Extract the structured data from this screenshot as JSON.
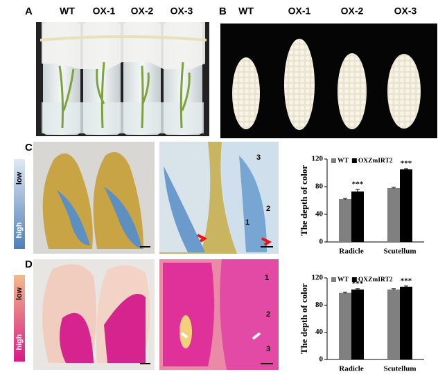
{
  "panels": {
    "a": {
      "label": "A",
      "tubes": [
        "WT",
        "OX-1",
        "OX-2",
        "OX-3"
      ]
    },
    "b": {
      "label": "B",
      "ears": [
        "WT",
        "OX-1",
        "OX-2",
        "OX-3"
      ]
    },
    "c": {
      "label": "C",
      "scale_low": "low",
      "scale_high": "high",
      "numbers": [
        "3",
        "2",
        "1"
      ]
    },
    "d": {
      "label": "D",
      "scale_low": "low",
      "scale_high": "high",
      "numbers": [
        "1",
        "2",
        "3"
      ]
    }
  },
  "chart_data": [
    {
      "type": "bar",
      "ylabel": "The depth of color",
      "categories": [
        "Radicle",
        "Scutellum"
      ],
      "series": [
        {
          "name": "WT",
          "color": "#808080",
          "values": [
            62,
            78
          ],
          "errors": [
            1,
            1
          ]
        },
        {
          "name": "OXZmIRT2",
          "color": "#000000",
          "values": [
            73,
            105
          ],
          "errors": [
            3,
            1
          ]
        }
      ],
      "annotations": [
        "***",
        "***"
      ],
      "ylim": [
        0,
        120
      ],
      "yticks": [
        0,
        40,
        80,
        120
      ]
    },
    {
      "type": "bar",
      "ylabel": "The depth of color",
      "categories": [
        "Radicle",
        "Scutellum"
      ],
      "series": [
        {
          "name": "WT",
          "color": "#808080",
          "values": [
            98,
            103
          ],
          "errors": [
            1,
            1
          ]
        },
        {
          "name": "OXZmIRT2",
          "color": "#000000",
          "values": [
            103,
            107
          ],
          "errors": [
            1,
            1
          ]
        }
      ],
      "annotations": [
        "***",
        "***"
      ],
      "ylim": [
        0,
        120
      ],
      "yticks": [
        0,
        40,
        80,
        120
      ]
    }
  ]
}
